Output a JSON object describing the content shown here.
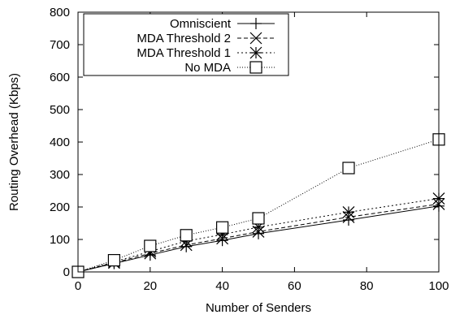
{
  "chart_data": {
    "type": "line",
    "title": "",
    "xlabel": "Number of Senders",
    "ylabel": "Routing Overhead (Kbps)",
    "xlim": [
      0,
      100
    ],
    "ylim": [
      0,
      800
    ],
    "x_ticks": [
      0,
      20,
      40,
      60,
      80,
      100
    ],
    "y_ticks": [
      0,
      100,
      200,
      300,
      400,
      500,
      600,
      700,
      800
    ],
    "grid": false,
    "legend_position": "top-left",
    "series": [
      {
        "name": "Omniscient",
        "marker": "plus",
        "dash": "solid",
        "x": [
          0,
          10,
          20,
          30,
          40,
          50,
          75,
          100
        ],
        "y": [
          0,
          26,
          52,
          78,
          97,
          118,
          160,
          203
        ]
      },
      {
        "name": "MDA Threshold 2",
        "marker": "cross",
        "dash": "dashed",
        "x": [
          0,
          10,
          20,
          30,
          40,
          50,
          75,
          100
        ],
        "y": [
          0,
          28,
          57,
          83,
          103,
          124,
          169,
          209
        ]
      },
      {
        "name": "MDA Threshold 1",
        "marker": "asterisk",
        "dash": "dotted",
        "x": [
          0,
          10,
          20,
          30,
          40,
          50,
          75,
          100
        ],
        "y": [
          0,
          31,
          63,
          95,
          115,
          138,
          184,
          226
        ]
      },
      {
        "name": "No MDA",
        "marker": "square",
        "dash": "fine-dotted",
        "x": [
          0,
          10,
          20,
          30,
          40,
          50,
          75,
          100
        ],
        "y": [
          0,
          36,
          80,
          113,
          137,
          165,
          320,
          408
        ]
      }
    ]
  }
}
